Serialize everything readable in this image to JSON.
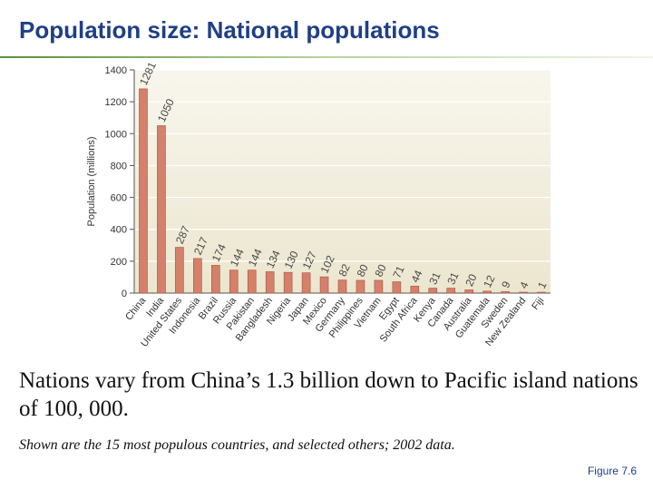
{
  "slide": {
    "title": "Population size: National populations",
    "caption": "Nations vary from China’s 1.3 billion down to Pacific island nations of 100, 000.",
    "note": "Shown are the 15 most populous countries, and selected others; 2002 data.",
    "figure_label": "Figure 7.6"
  },
  "colors": {
    "title": "#1f3f86",
    "bar_fill": "#d4806a",
    "bar_stroke": "#a5523e",
    "plot_bg_top": "#f8f6ed",
    "plot_bg_bottom": "#ece6cf"
  },
  "chart_data": {
    "type": "bar",
    "title": "",
    "xlabel": "",
    "ylabel": "Population (millions)",
    "ylim": [
      0,
      1400
    ],
    "yticks": [
      0,
      200,
      400,
      600,
      800,
      1000,
      1200,
      1400
    ],
    "grid": true,
    "categories": [
      "China",
      "India",
      "United States",
      "Indonesia",
      "Brazil",
      "Russia",
      "Pakistan",
      "Bangladesh",
      "Nigeria",
      "Japan",
      "Mexico",
      "Germany",
      "Philippines",
      "Vietnam",
      "Egypt",
      "South Africa",
      "Kenya",
      "Canada",
      "Australia",
      "Guatemala",
      "Sweden",
      "New Zealand",
      "Fiji"
    ],
    "values": [
      1281,
      1050,
      287,
      217,
      174,
      144,
      144,
      134,
      130,
      127,
      102,
      82,
      80,
      80,
      71,
      44,
      31,
      31,
      20,
      12,
      9,
      4,
      1
    ]
  }
}
